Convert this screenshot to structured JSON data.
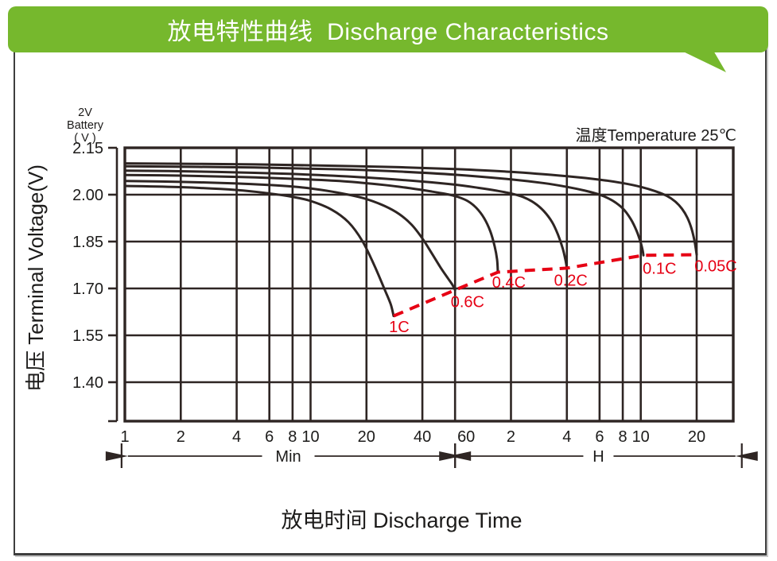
{
  "banner": {
    "title": "放电特性曲线  Discharge Characteristics",
    "bg_color": "#76b82d",
    "text_color": "#ffffff"
  },
  "chart_data": {
    "type": "line",
    "title": "放电特性曲线 Discharge Characteristics",
    "xlabel": "放电时间  Discharge Time",
    "ylabel": "电压 Terminal Voltage(V)",
    "unit_note": [
      "2V",
      "Battery",
      "( V )"
    ],
    "temperature_note": "温度Temperature 25℃",
    "x_scale": "log",
    "x_unit_segments": [
      {
        "label": "Min",
        "from_t": 0.96,
        "to_t": 60
      },
      {
        "label": "H",
        "from_t": 60,
        "to_t": 2100
      }
    ],
    "x_ticks": [
      {
        "t": 1,
        "label": "1"
      },
      {
        "t": 2,
        "label": "2"
      },
      {
        "t": 4,
        "label": "4"
      },
      {
        "t": 6,
        "label": "6"
      },
      {
        "t": 8,
        "label": "8"
      },
      {
        "t": 10,
        "label": "10"
      },
      {
        "t": 20,
        "label": "20"
      },
      {
        "t": 40,
        "label": "40"
      },
      {
        "t": 60,
        "label": "60"
      },
      {
        "t": 120,
        "label": "2"
      },
      {
        "t": 240,
        "label": "4"
      },
      {
        "t": 360,
        "label": "6"
      },
      {
        "t": 480,
        "label": "8"
      },
      {
        "t": 600,
        "label": "10"
      },
      {
        "t": 1200,
        "label": "20"
      }
    ],
    "y_ticks": [
      {
        "v": 2.15,
        "label": "2.15"
      },
      {
        "v": 2.0,
        "label": "2.00"
      },
      {
        "v": 1.85,
        "label": "1.85"
      },
      {
        "v": 1.7,
        "label": "1.70"
      },
      {
        "v": 1.55,
        "label": "1.55"
      },
      {
        "v": 1.4,
        "label": "1.40"
      }
    ],
    "ylim": [
      1.28,
      2.15
    ],
    "grid": true,
    "line_color": "#2e2523",
    "cutoff_color": "#e60014",
    "series": [
      {
        "name": "1C",
        "points": [
          [
            1,
            2.028
          ],
          [
            2,
            2.024
          ],
          [
            4,
            2.015
          ],
          [
            6,
            2.004
          ],
          [
            8,
            1.993
          ],
          [
            10,
            1.98
          ],
          [
            13,
            1.952
          ],
          [
            16,
            1.912
          ],
          [
            19,
            1.852
          ],
          [
            22,
            1.775
          ],
          [
            25,
            1.698
          ],
          [
            27,
            1.65
          ],
          [
            28,
            1.612
          ]
        ]
      },
      {
        "name": "0.6C",
        "points": [
          [
            1,
            2.044
          ],
          [
            2,
            2.041
          ],
          [
            4,
            2.036
          ],
          [
            6,
            2.031
          ],
          [
            8,
            2.026
          ],
          [
            10,
            2.02
          ],
          [
            13,
            2.01
          ],
          [
            16,
            2.0
          ],
          [
            20,
            1.986
          ],
          [
            25,
            1.964
          ],
          [
            30,
            1.938
          ],
          [
            35,
            1.904
          ],
          [
            40,
            1.86
          ],
          [
            45,
            1.812
          ],
          [
            50,
            1.768
          ],
          [
            55,
            1.732
          ],
          [
            58,
            1.712
          ],
          [
            60,
            1.695
          ]
        ]
      },
      {
        "name": "0.4C",
        "points": [
          [
            1,
            2.063
          ],
          [
            2,
            2.061
          ],
          [
            4,
            2.057
          ],
          [
            8,
            2.051
          ],
          [
            15,
            2.043
          ],
          [
            25,
            2.031
          ],
          [
            35,
            2.02
          ],
          [
            45,
            2.01
          ],
          [
            55,
            2.001
          ],
          [
            62,
            1.993
          ],
          [
            70,
            1.98
          ],
          [
            78,
            1.958
          ],
          [
            86,
            1.925
          ],
          [
            93,
            1.882
          ],
          [
            98,
            1.835
          ],
          [
            101,
            1.793
          ],
          [
            102,
            1.752
          ]
        ]
      },
      {
        "name": "0.2C",
        "points": [
          [
            1,
            2.077
          ],
          [
            2,
            2.075
          ],
          [
            5,
            2.07
          ],
          [
            10,
            2.064
          ],
          [
            20,
            2.055
          ],
          [
            40,
            2.042
          ],
          [
            60,
            2.032
          ],
          [
            80,
            2.022
          ],
          [
            100,
            2.013
          ],
          [
            120,
            2.004
          ],
          [
            140,
            1.992
          ],
          [
            160,
            1.974
          ],
          [
            180,
            1.948
          ],
          [
            200,
            1.912
          ],
          [
            215,
            1.872
          ],
          [
            228,
            1.828
          ],
          [
            236,
            1.79
          ],
          [
            240,
            1.765
          ]
        ]
      },
      {
        "name": "0.1C",
        "points": [
          [
            1,
            2.091
          ],
          [
            5,
            2.087
          ],
          [
            15,
            2.081
          ],
          [
            30,
            2.074
          ],
          [
            60,
            2.064
          ],
          [
            120,
            2.049
          ],
          [
            180,
            2.037
          ],
          [
            240,
            2.025
          ],
          [
            300,
            2.013
          ],
          [
            360,
            2.0
          ],
          [
            420,
            1.982
          ],
          [
            480,
            1.956
          ],
          [
            530,
            1.922
          ],
          [
            570,
            1.884
          ],
          [
            600,
            1.846
          ],
          [
            615,
            1.82
          ],
          [
            620,
            1.806
          ]
        ]
      },
      {
        "name": "0.05C",
        "points": [
          [
            1,
            2.1
          ],
          [
            5,
            2.097
          ],
          [
            15,
            2.092
          ],
          [
            30,
            2.088
          ],
          [
            60,
            2.082
          ],
          [
            120,
            2.073
          ],
          [
            240,
            2.059
          ],
          [
            360,
            2.048
          ],
          [
            480,
            2.037
          ],
          [
            600,
            2.025
          ],
          [
            720,
            2.011
          ],
          [
            830,
            1.996
          ],
          [
            920,
            1.978
          ],
          [
            1000,
            1.955
          ],
          [
            1070,
            1.926
          ],
          [
            1125,
            1.892
          ],
          [
            1170,
            1.85
          ],
          [
            1200,
            1.808
          ]
        ]
      }
    ],
    "cutoff_envelope_note": "red dashed line joins the end-of-discharge point of each rate curve",
    "series_labels": [
      {
        "text": "1C",
        "t": 30,
        "v": 1.578
      },
      {
        "text": "0.6C",
        "t": 70,
        "v": 1.658
      },
      {
        "text": "0.4C",
        "t": 117,
        "v": 1.72
      },
      {
        "text": "0.2C",
        "t": 252,
        "v": 1.727
      },
      {
        "text": "0.1C",
        "t": 757,
        "v": 1.765
      },
      {
        "text": "0.05C",
        "t": 1520,
        "v": 1.773
      }
    ]
  }
}
